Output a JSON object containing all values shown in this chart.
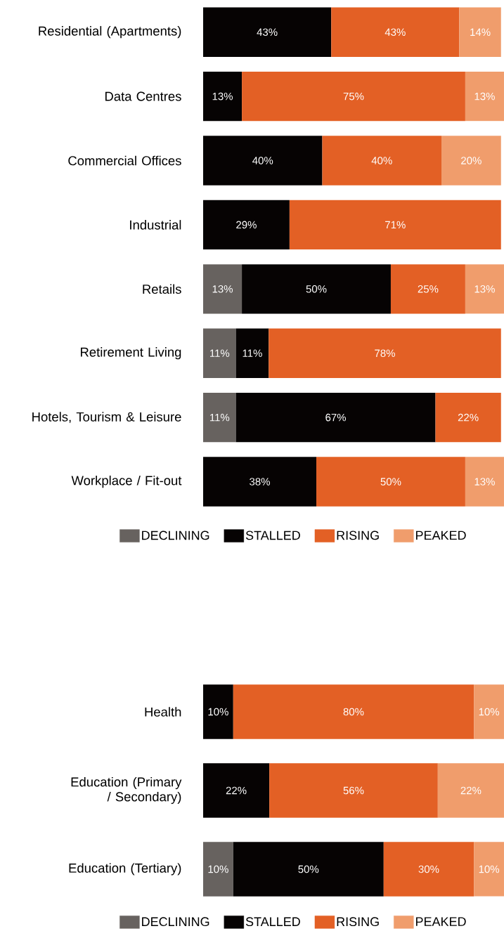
{
  "chart_data": [
    {
      "type": "bar",
      "orientation": "horizontal",
      "stacked": true,
      "legend": "bottom",
      "categories": [
        "Residential (Apartments)",
        "Data Centres",
        "Commercial Offices",
        "Industrial",
        "Retails",
        "Retirement Living",
        "Hotels, Tourism & Leisure",
        "Workplace / Fit-out"
      ],
      "series": [
        {
          "name": "DECLINING",
          "color": "#67625f",
          "values": [
            null,
            null,
            null,
            null,
            13,
            11,
            11,
            null
          ],
          "value_labels": [
            null,
            null,
            null,
            null,
            "13%",
            "11%",
            "11%",
            null
          ]
        },
        {
          "name": "STALLED",
          "color": "#060303",
          "values": [
            43,
            13,
            40,
            29,
            50,
            11,
            67,
            38
          ],
          "value_labels": [
            "43%",
            "13%",
            "40%",
            "29%",
            "50%",
            "11%",
            "67%",
            "38%"
          ]
        },
        {
          "name": "RISING",
          "color": "#e36025",
          "values": [
            43,
            75,
            40,
            71,
            25,
            78,
            22,
            50
          ],
          "value_labels": [
            "43%",
            "75%",
            "40%",
            "71%",
            "25%",
            "78%",
            "22%",
            "50%"
          ]
        },
        {
          "name": "PEAKED",
          "color": "#f09d6c",
          "values": [
            14,
            13,
            20,
            null,
            13,
            null,
            null,
            13
          ],
          "value_labels": [
            "14%",
            "13%",
            "20%",
            null,
            "13%",
            null,
            null,
            "13%"
          ]
        }
      ]
    },
    {
      "type": "bar",
      "orientation": "horizontal",
      "stacked": true,
      "legend": "bottom",
      "categories": [
        "Health",
        "Education (Primary / Secondary)",
        "Education (Tertiary)"
      ],
      "series": [
        {
          "name": "DECLINING",
          "color": "#67625f",
          "values": [
            null,
            null,
            10
          ],
          "value_labels": [
            null,
            null,
            "10%"
          ]
        },
        {
          "name": "STALLED",
          "color": "#060303",
          "values": [
            10,
            22,
            50
          ],
          "value_labels": [
            "10%",
            "22%",
            "50%"
          ]
        },
        {
          "name": "RISING",
          "color": "#e36025",
          "values": [
            80,
            56,
            30
          ],
          "value_labels": [
            "80%",
            "56%",
            "30%"
          ]
        },
        {
          "name": "PEAKED",
          "color": "#f09d6c",
          "values": [
            10,
            22,
            10
          ],
          "value_labels": [
            "10%",
            "22%",
            "10%"
          ]
        }
      ]
    }
  ]
}
